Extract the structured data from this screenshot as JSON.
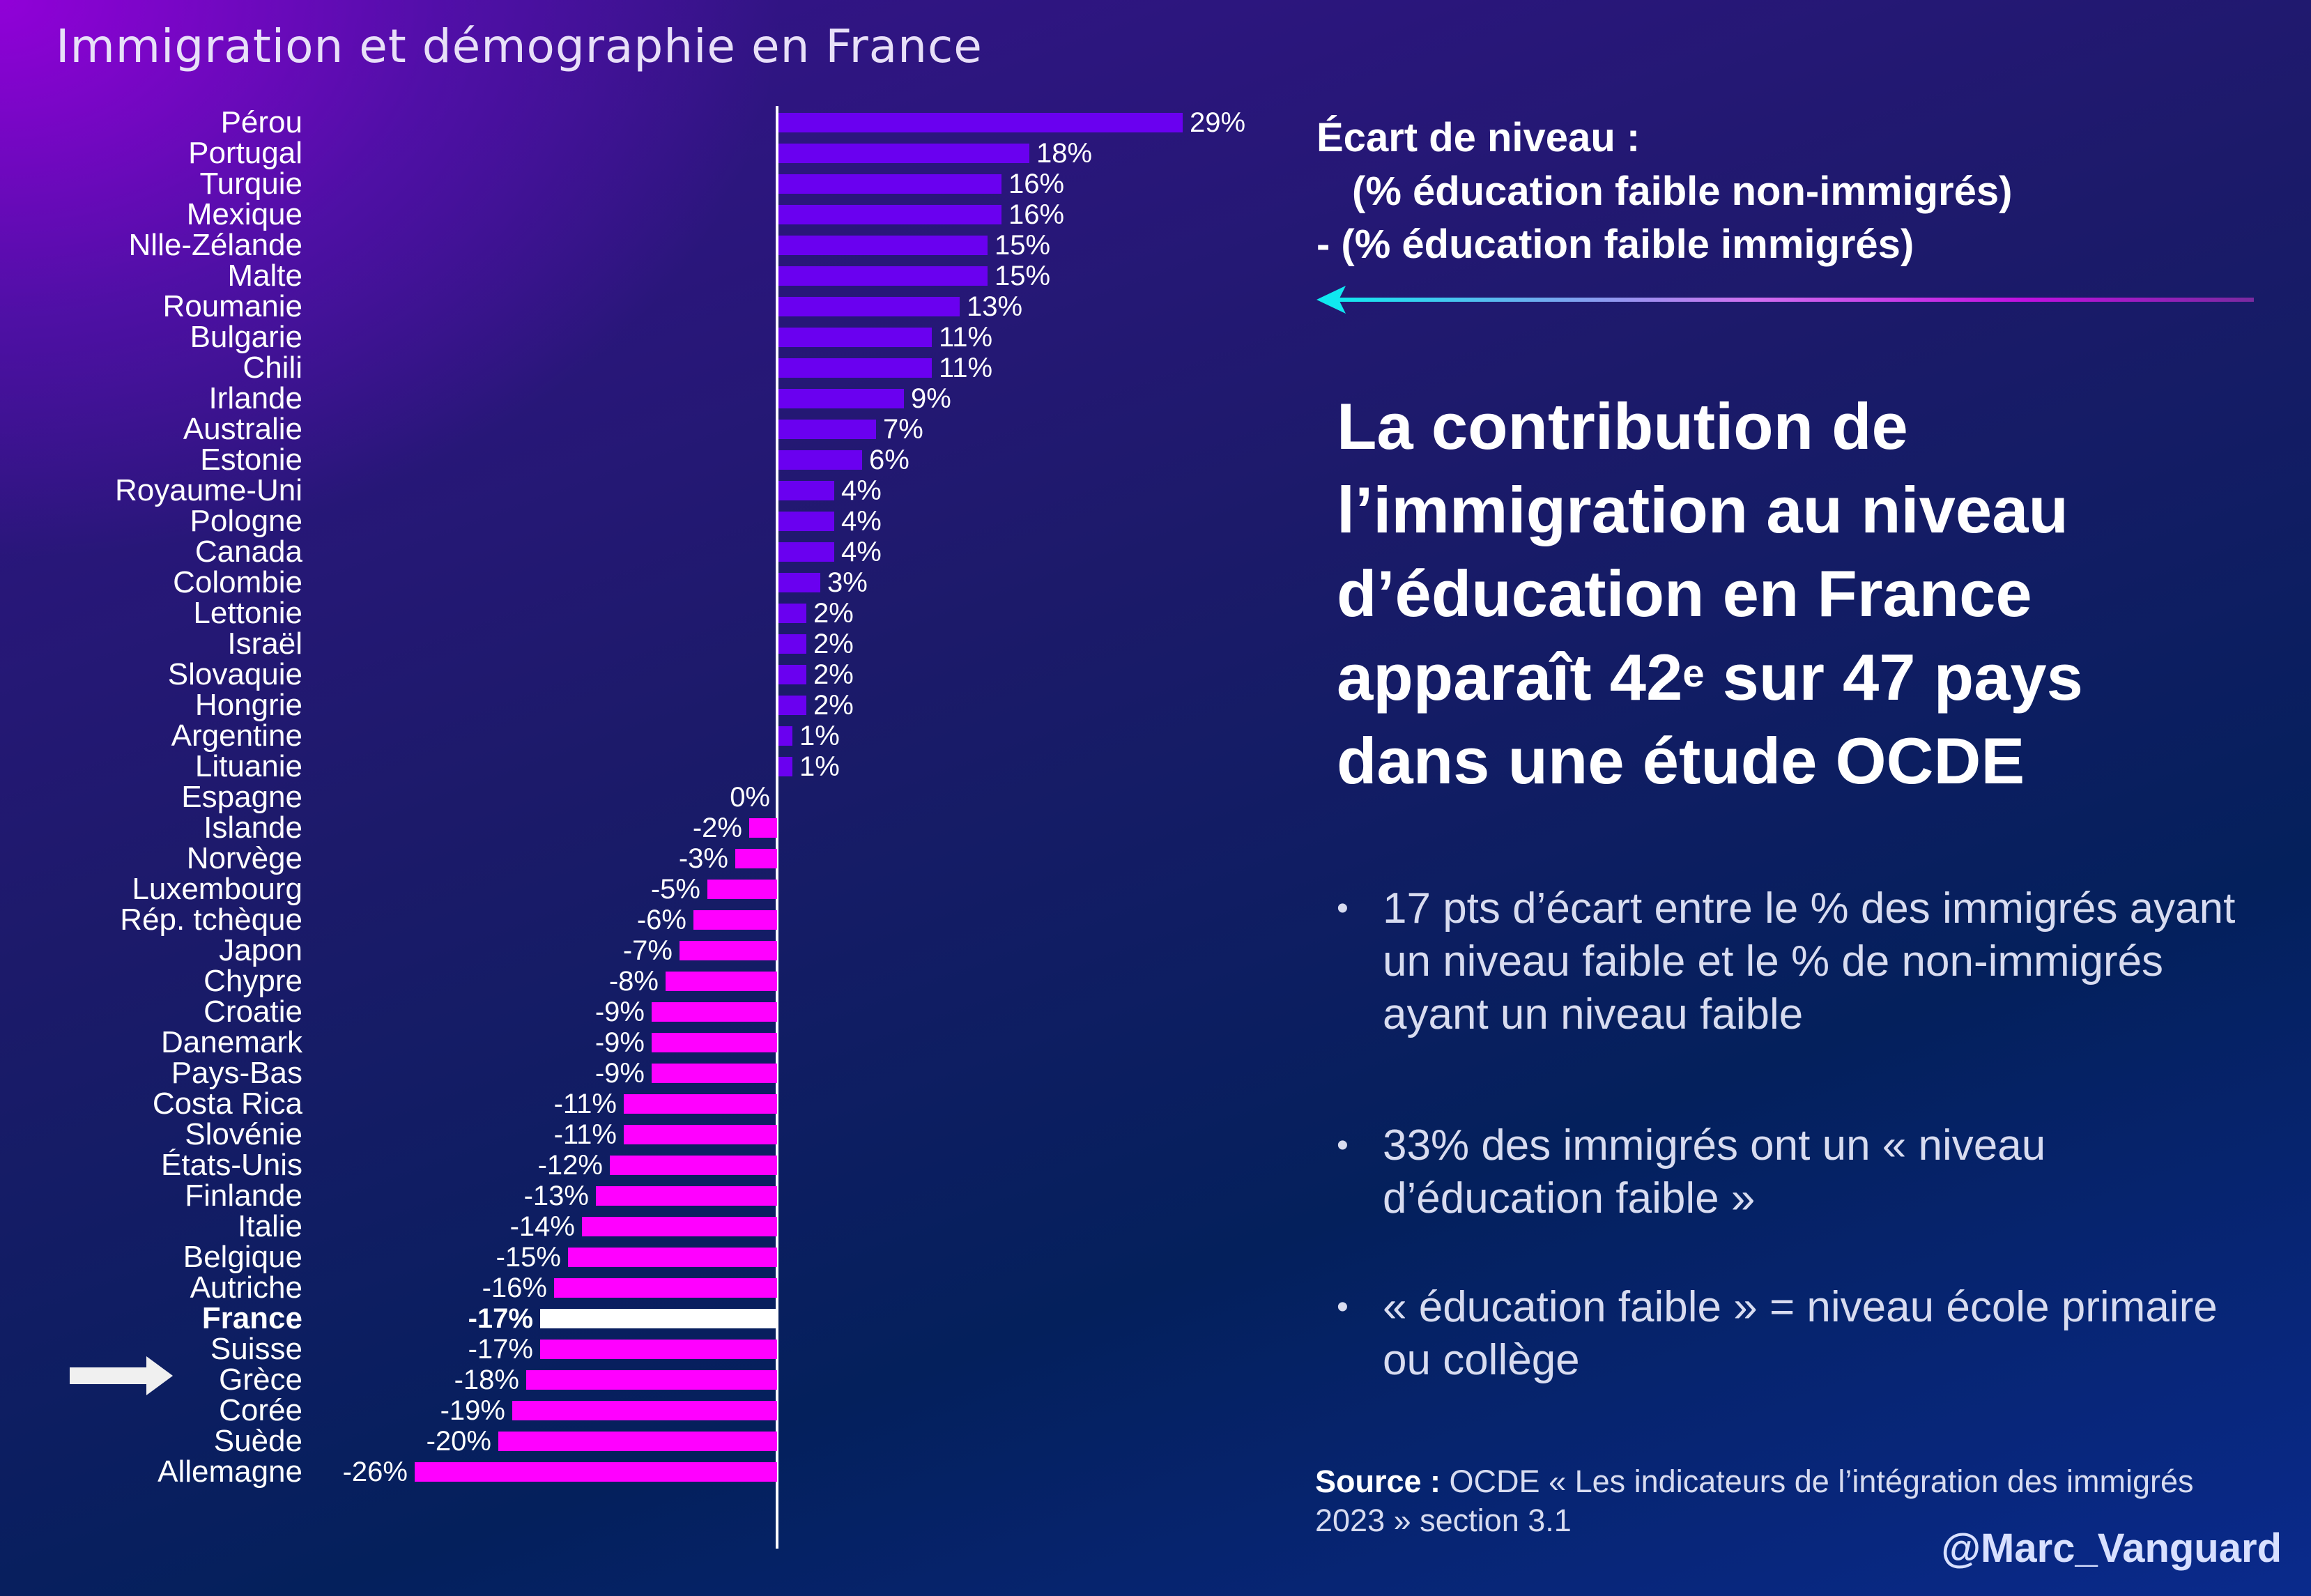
{
  "title": "Immigration et démographie en France",
  "chart_data": {
    "type": "bar",
    "orientation": "horizontal",
    "title": "",
    "xlabel": "",
    "ylabel": "",
    "categories": [
      "Pérou",
      "Portugal",
      "Turquie",
      "Mexique",
      "Nlle-Zélande",
      "Malte",
      "Roumanie",
      "Bulgarie",
      "Chili",
      "Irlande",
      "Australie",
      "Estonie",
      "Royaume-Uni",
      "Pologne",
      "Canada",
      "Colombie",
      "Lettonie",
      "Israël",
      "Slovaquie",
      "Hongrie",
      "Argentine",
      "Lituanie",
      "Espagne",
      "Islande",
      "Norvège",
      "Luxembourg",
      "Rép. tchèque",
      "Japon",
      "Chypre",
      "Croatie",
      "Danemark",
      "Pays-Bas",
      "Costa Rica",
      "Slovénie",
      "États-Unis",
      "Finlande",
      "Italie",
      "Belgique",
      "Autriche",
      "France",
      "Suisse",
      "Grèce",
      "Corée",
      "Suède",
      "Allemagne"
    ],
    "values": [
      29,
      18,
      16,
      16,
      15,
      15,
      13,
      11,
      11,
      9,
      7,
      6,
      4,
      4,
      4,
      3,
      2,
      2,
      2,
      2,
      1,
      1,
      0,
      -2,
      -3,
      -5,
      -6,
      -7,
      -8,
      -9,
      -9,
      -9,
      -11,
      -11,
      -12,
      -13,
      -14,
      -15,
      -16,
      -17,
      -17,
      -18,
      -19,
      -20,
      -26
    ],
    "data_labels": [
      "29%",
      "18%",
      "16%",
      "16%",
      "15%",
      "15%",
      "13%",
      "11%",
      "11%",
      "9%",
      "7%",
      "6%",
      "4%",
      "4%",
      "4%",
      "3%",
      "2%",
      "2%",
      "2%",
      "2%",
      "1%",
      "1%",
      "0%",
      "-2%",
      "-3%",
      "-5%",
      "-6%",
      "-7%",
      "-8%",
      "-9%",
      "-9%",
      "-9%",
      "-11%",
      "-11%",
      "-12%",
      "-13%",
      "-14%",
      "-15%",
      "-16%",
      "-17%",
      "-17%",
      "-18%",
      "-19%",
      "-20%",
      "-26%"
    ],
    "highlight": "France",
    "grid": false,
    "xlim": [
      -26,
      29
    ],
    "colors": {
      "positive": "#6a00f0",
      "negative": "#ff00ff",
      "highlight": "#ffffff"
    }
  },
  "definition": {
    "line1": "Écart de niveau :",
    "line2": "(% éducation faible non-immigrés)",
    "line3": "- (% éducation faible immigrés)"
  },
  "headline": {
    "line1": "La contribution de",
    "line2": "l’immigration au niveau",
    "line3": "d’éducation en France",
    "line4_a": "apparaît 42",
    "line4_sup": "e",
    "line4_b": " sur 47 pays",
    "line5": "dans une étude OCDE"
  },
  "bullets": [
    "17 pts d’écart entre le % des immigrés ayant un niveau faible et le % de non-immigrés ayant un niveau faible",
    "33% des immigrés ont un « niveau d’éducation faible »",
    "« éducation faible » = niveau école primaire ou collège"
  ],
  "source": {
    "label": "Source :",
    "text": " OCDE « Les indicateurs de l’intégration des immigrés 2023 »  section 3.1"
  },
  "handle": "@Marc_Vanguard"
}
